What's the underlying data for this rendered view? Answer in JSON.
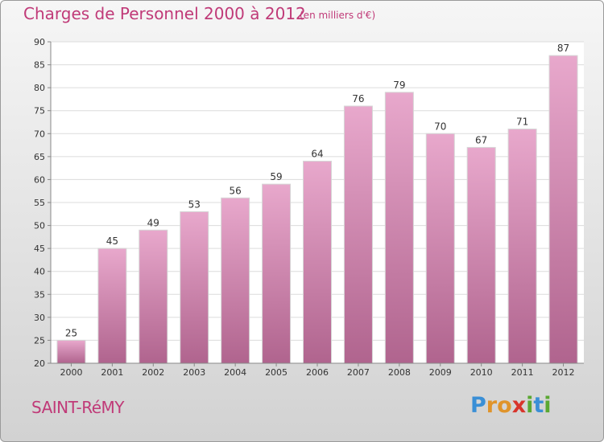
{
  "title": "Charges de Personnel 2000 à 2012",
  "subtitle": "(en milliers d'€)",
  "town": "SAINT-RéMY",
  "logo": {
    "letters": [
      "P",
      "r",
      "o",
      "x",
      "i",
      "t",
      "i"
    ],
    "colors": [
      "#3a8fd6",
      "#e0942a",
      "#e0942a",
      "#d8342c",
      "#5aa832",
      "#3a8fd6",
      "#5aa832"
    ]
  },
  "colors": {
    "bar_light": "#e8a8cc",
    "bar_dark": "#b0648e",
    "title": "#c03a78"
  },
  "chart_data": {
    "type": "bar",
    "title": "Charges de Personnel 2000 à 2012",
    "subtitle": "(en milliers d'€)",
    "categories": [
      "2000",
      "2001",
      "2002",
      "2003",
      "2004",
      "2005",
      "2006",
      "2007",
      "2008",
      "2009",
      "2010",
      "2011",
      "2012"
    ],
    "values": [
      25,
      45,
      49,
      53,
      56,
      59,
      64,
      76,
      79,
      70,
      67,
      71,
      87
    ],
    "ylim": [
      20,
      90
    ],
    "yticks": [
      20,
      25,
      30,
      35,
      40,
      45,
      50,
      55,
      60,
      65,
      70,
      75,
      80,
      85,
      90
    ],
    "grid": true
  }
}
